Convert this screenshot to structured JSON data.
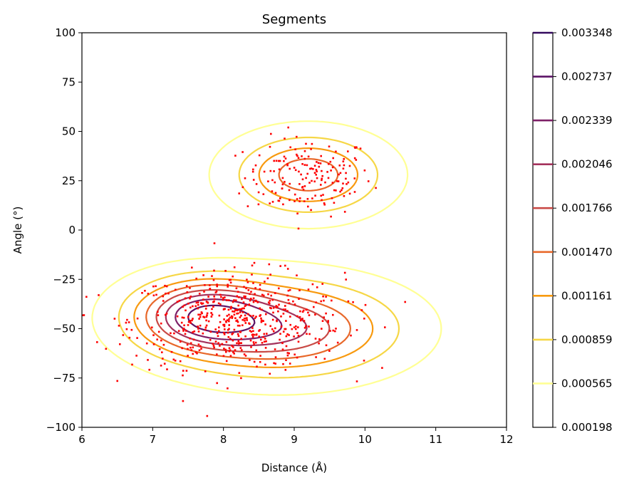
{
  "chart_data": {
    "type": "contour",
    "title": "Segments",
    "xlabel": "Distance (Å)",
    "ylabel": "Angle (°)",
    "xlim": [
      6,
      12
    ],
    "ylim": [
      -100,
      100
    ],
    "x_ticks": [
      6,
      7,
      8,
      9,
      10,
      11,
      12
    ],
    "y_ticks": [
      -100,
      -75,
      -50,
      -25,
      0,
      25,
      50,
      75,
      100
    ],
    "grid": false,
    "colorbar": {
      "labels": [
        "0.000198",
        "0.000565",
        "0.000859",
        "0.001161",
        "0.001470",
        "0.001766",
        "0.002046",
        "0.002339",
        "0.002737",
        "0.003348"
      ],
      "colors": [
        "#ffff94",
        "#f6d746",
        "#f89a0f",
        "#e8682a",
        "#c94a46",
        "#a4325c",
        "#7e2067",
        "#5b1266",
        "#340a5f",
        "#000004"
      ]
    },
    "density_modes": [
      {
        "x": 9.2,
        "y": 28,
        "sx": 0.62,
        "sy": 12,
        "w": 0.4
      },
      {
        "x": 7.7,
        "y": -43,
        "sx": 0.6,
        "sy": 11,
        "w": 0.6
      },
      {
        "x": 8.8,
        "y": -50,
        "sx": 0.95,
        "sy": 14,
        "w": 0.55
      }
    ],
    "scatter_color": "#ff0000",
    "scatter_clusters": [
      {
        "x": 9.2,
        "y": 27,
        "sx": 0.45,
        "sy": 10,
        "n": 170
      },
      {
        "x": 8.2,
        "y": -46,
        "sx": 0.75,
        "sy": 12,
        "n": 560
      }
    ]
  }
}
